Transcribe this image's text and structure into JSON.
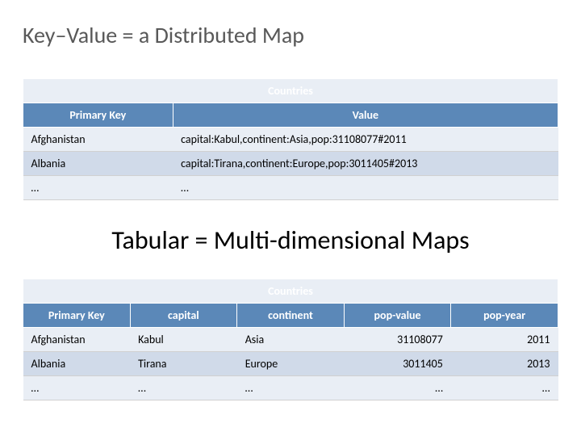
{
  "title1": "Key–Value = a Distributed Map",
  "title2": "Tabular = Multi-dimensional Maps",
  "colors": {
    "header_bg": "#5b88b8",
    "header_fg": "#ffffff",
    "row_odd_bg": "#e9eef5",
    "row_even_bg": "#d0dae9",
    "title1_color": "#595959",
    "title2_color": "#000000",
    "border": "#d0d0d0"
  },
  "table1": {
    "type": "table",
    "caption": "Countries",
    "columns": [
      "Primary Key",
      "Value"
    ],
    "rows": [
      [
        "Afghanistan",
        "capital:Kabul,continent:Asia,pop:31108077#2011"
      ],
      [
        "Albania",
        "capital:Tirana,continent:Europe,pop:3011405#2013"
      ],
      [
        "…",
        "…"
      ]
    ]
  },
  "table2": {
    "type": "table",
    "caption": "Countries",
    "columns": [
      "Primary Key",
      "capital",
      "continent",
      "pop-value",
      "pop-year"
    ],
    "rows": [
      [
        "Afghanistan",
        "Kabul",
        "Asia",
        "31108077",
        "2011"
      ],
      [
        "Albania",
        "Tirana",
        "Europe",
        "3011405",
        "2013"
      ],
      [
        "…",
        "…",
        "…",
        "…",
        "…"
      ]
    ],
    "align": [
      "left",
      "left",
      "left",
      "right",
      "right"
    ]
  }
}
